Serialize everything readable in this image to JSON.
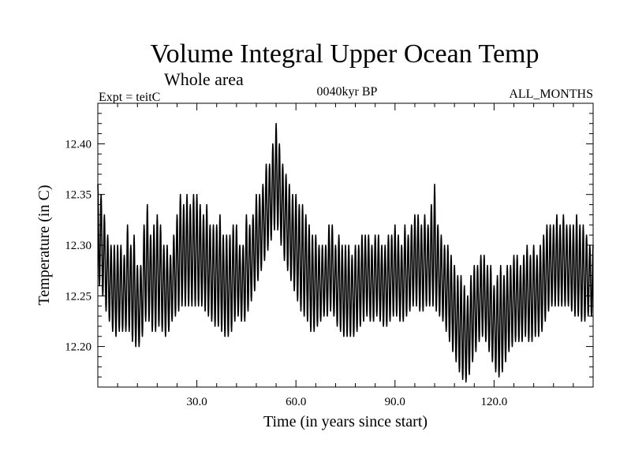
{
  "chart_data": {
    "type": "line",
    "title": "Volume Integral Upper Ocean Temp",
    "subtitle": "Whole area",
    "annotations": {
      "left": "Expt = teitC",
      "center": "0040kyr BP",
      "right": "ALL_MONTHS"
    },
    "xlabel": "Time (in years since start)",
    "ylabel": "Temperature (in C)",
    "xlim": [
      0,
      150
    ],
    "ylim": [
      12.16,
      12.44
    ],
    "xticks": [
      30,
      60,
      90,
      120
    ],
    "xtick_labels": [
      "30.0",
      "60.0",
      "90.0",
      "120.0"
    ],
    "yticks": [
      12.2,
      12.25,
      12.3,
      12.35,
      12.4
    ],
    "ytick_labels": [
      "12.20",
      "12.25",
      "12.30",
      "12.35",
      "12.40"
    ],
    "grid": false,
    "series": [
      {
        "name": "Temperature",
        "description": "Monthly series with strong seasonal oscillation (~1 cycle per year)",
        "peaks": [
          [
            0,
            12.36
          ],
          [
            1,
            12.35
          ],
          [
            2,
            12.33
          ],
          [
            3,
            12.31
          ],
          [
            4,
            12.3
          ],
          [
            5,
            12.3
          ],
          [
            6,
            12.3
          ],
          [
            7,
            12.3
          ],
          [
            8,
            12.29
          ],
          [
            9,
            12.32
          ],
          [
            10,
            12.3
          ],
          [
            11,
            12.31
          ],
          [
            12,
            12.28
          ],
          [
            13,
            12.28
          ],
          [
            14,
            12.32
          ],
          [
            15,
            12.34
          ],
          [
            16,
            12.31
          ],
          [
            17,
            12.32
          ],
          [
            18,
            12.33
          ],
          [
            19,
            12.32
          ],
          [
            20,
            12.3
          ],
          [
            21,
            12.3
          ],
          [
            22,
            12.29
          ],
          [
            23,
            12.31
          ],
          [
            24,
            12.33
          ],
          [
            25,
            12.35
          ],
          [
            26,
            12.34
          ],
          [
            27,
            12.35
          ],
          [
            28,
            12.34
          ],
          [
            29,
            12.35
          ],
          [
            30,
            12.35
          ],
          [
            31,
            12.34
          ],
          [
            32,
            12.33
          ],
          [
            33,
            12.34
          ],
          [
            34,
            12.32
          ],
          [
            35,
            12.32
          ],
          [
            36,
            12.32
          ],
          [
            37,
            12.33
          ],
          [
            38,
            12.31
          ],
          [
            39,
            12.31
          ],
          [
            40,
            12.31
          ],
          [
            41,
            12.32
          ],
          [
            42,
            12.32
          ],
          [
            43,
            12.3
          ],
          [
            44,
            12.3
          ],
          [
            45,
            12.33
          ],
          [
            46,
            12.32
          ],
          [
            47,
            12.33
          ],
          [
            48,
            12.35
          ],
          [
            49,
            12.35
          ],
          [
            50,
            12.36
          ],
          [
            51,
            12.38
          ],
          [
            52,
            12.38
          ],
          [
            53,
            12.4
          ],
          [
            54,
            12.42
          ],
          [
            55,
            12.4
          ],
          [
            56,
            12.38
          ],
          [
            57,
            12.37
          ],
          [
            58,
            12.36
          ],
          [
            59,
            12.35
          ],
          [
            60,
            12.35
          ],
          [
            61,
            12.34
          ],
          [
            62,
            12.34
          ],
          [
            63,
            12.33
          ],
          [
            64,
            12.32
          ],
          [
            65,
            12.31
          ],
          [
            66,
            12.31
          ],
          [
            67,
            12.3
          ],
          [
            68,
            12.3
          ],
          [
            69,
            12.3
          ],
          [
            70,
            12.32
          ],
          [
            71,
            12.32
          ],
          [
            72,
            12.3
          ],
          [
            73,
            12.31
          ],
          [
            74,
            12.3
          ],
          [
            75,
            12.3
          ],
          [
            76,
            12.3
          ],
          [
            77,
            12.29
          ],
          [
            78,
            12.3
          ],
          [
            79,
            12.3
          ],
          [
            80,
            12.31
          ],
          [
            81,
            12.31
          ],
          [
            82,
            12.31
          ],
          [
            83,
            12.3
          ],
          [
            84,
            12.31
          ],
          [
            85,
            12.31
          ],
          [
            86,
            12.3
          ],
          [
            87,
            12.3
          ],
          [
            88,
            12.31
          ],
          [
            89,
            12.31
          ],
          [
            90,
            12.32
          ],
          [
            91,
            12.31
          ],
          [
            92,
            12.3
          ],
          [
            93,
            12.32
          ],
          [
            94,
            12.31
          ],
          [
            95,
            12.32
          ],
          [
            96,
            12.33
          ],
          [
            97,
            12.33
          ],
          [
            98,
            12.32
          ],
          [
            99,
            12.33
          ],
          [
            100,
            12.32
          ],
          [
            101,
            12.34
          ],
          [
            102,
            12.36
          ],
          [
            103,
            12.32
          ],
          [
            104,
            12.31
          ],
          [
            105,
            12.3
          ],
          [
            106,
            12.3
          ],
          [
            107,
            12.29
          ],
          [
            108,
            12.28
          ],
          [
            109,
            12.27
          ],
          [
            110,
            12.27
          ],
          [
            111,
            12.26
          ],
          [
            112,
            12.25
          ],
          [
            113,
            12.27
          ],
          [
            114,
            12.28
          ],
          [
            115,
            12.28
          ],
          [
            116,
            12.29
          ],
          [
            117,
            12.29
          ],
          [
            118,
            12.28
          ],
          [
            119,
            12.28
          ],
          [
            120,
            12.26
          ],
          [
            121,
            12.27
          ],
          [
            122,
            12.28
          ],
          [
            123,
            12.27
          ],
          [
            124,
            12.28
          ],
          [
            125,
            12.28
          ],
          [
            126,
            12.29
          ],
          [
            127,
            12.29
          ],
          [
            128,
            12.28
          ],
          [
            129,
            12.29
          ],
          [
            130,
            12.3
          ],
          [
            131,
            12.29
          ],
          [
            132,
            12.3
          ],
          [
            133,
            12.29
          ],
          [
            134,
            12.3
          ],
          [
            135,
            12.31
          ],
          [
            136,
            12.32
          ],
          [
            137,
            12.32
          ],
          [
            138,
            12.32
          ],
          [
            139,
            12.33
          ],
          [
            140,
            12.32
          ],
          [
            141,
            12.33
          ],
          [
            142,
            12.32
          ],
          [
            143,
            12.32
          ],
          [
            144,
            12.32
          ],
          [
            145,
            12.33
          ],
          [
            146,
            12.32
          ],
          [
            147,
            12.32
          ],
          [
            148,
            12.31
          ],
          [
            149,
            12.3
          ],
          [
            150,
            12.3
          ]
        ],
        "troughs": [
          [
            0,
            12.26
          ],
          [
            1,
            12.26
          ],
          [
            2,
            12.24
          ],
          [
            3,
            12.23
          ],
          [
            4,
            12.22
          ],
          [
            5,
            12.21
          ],
          [
            6,
            12.21
          ],
          [
            7,
            12.22
          ],
          [
            8,
            12.21
          ],
          [
            9,
            12.22
          ],
          [
            10,
            12.21
          ],
          [
            11,
            12.2
          ],
          [
            12,
            12.2
          ],
          [
            13,
            12.2
          ],
          [
            14,
            12.22
          ],
          [
            15,
            12.23
          ],
          [
            16,
            12.22
          ],
          [
            17,
            12.21
          ],
          [
            18,
            12.22
          ],
          [
            19,
            12.22
          ],
          [
            20,
            12.21
          ],
          [
            21,
            12.21
          ],
          [
            22,
            12.22
          ],
          [
            23,
            12.23
          ],
          [
            24,
            12.23
          ],
          [
            25,
            12.24
          ],
          [
            26,
            12.24
          ],
          [
            27,
            12.24
          ],
          [
            28,
            12.24
          ],
          [
            29,
            12.24
          ],
          [
            30,
            12.24
          ],
          [
            31,
            12.24
          ],
          [
            32,
            12.24
          ],
          [
            33,
            12.23
          ],
          [
            34,
            12.23
          ],
          [
            35,
            12.22
          ],
          [
            36,
            12.22
          ],
          [
            37,
            12.22
          ],
          [
            38,
            12.21
          ],
          [
            39,
            12.21
          ],
          [
            40,
            12.21
          ],
          [
            41,
            12.22
          ],
          [
            42,
            12.23
          ],
          [
            43,
            12.23
          ],
          [
            44,
            12.22
          ],
          [
            45,
            12.23
          ],
          [
            46,
            12.24
          ],
          [
            47,
            12.25
          ],
          [
            48,
            12.26
          ],
          [
            49,
            12.27
          ],
          [
            50,
            12.28
          ],
          [
            51,
            12.29
          ],
          [
            52,
            12.3
          ],
          [
            53,
            12.31
          ],
          [
            54,
            12.32
          ],
          [
            55,
            12.31
          ],
          [
            56,
            12.29
          ],
          [
            57,
            12.28
          ],
          [
            58,
            12.27
          ],
          [
            59,
            12.26
          ],
          [
            60,
            12.25
          ],
          [
            61,
            12.24
          ],
          [
            62,
            12.23
          ],
          [
            63,
            12.23
          ],
          [
            64,
            12.22
          ],
          [
            65,
            12.21
          ],
          [
            66,
            12.22
          ],
          [
            67,
            12.22
          ],
          [
            68,
            12.23
          ],
          [
            69,
            12.23
          ],
          [
            70,
            12.23
          ],
          [
            71,
            12.24
          ],
          [
            72,
            12.22
          ],
          [
            73,
            12.22
          ],
          [
            74,
            12.21
          ],
          [
            75,
            12.21
          ],
          [
            76,
            12.21
          ],
          [
            77,
            12.21
          ],
          [
            78,
            12.21
          ],
          [
            79,
            12.22
          ],
          [
            80,
            12.22
          ],
          [
            81,
            12.23
          ],
          [
            82,
            12.23
          ],
          [
            83,
            12.22
          ],
          [
            84,
            12.23
          ],
          [
            85,
            12.23
          ],
          [
            86,
            12.22
          ],
          [
            87,
            12.22
          ],
          [
            88,
            12.22
          ],
          [
            89,
            12.23
          ],
          [
            90,
            12.23
          ],
          [
            91,
            12.23
          ],
          [
            92,
            12.22
          ],
          [
            93,
            12.23
          ],
          [
            94,
            12.23
          ],
          [
            95,
            12.24
          ],
          [
            96,
            12.24
          ],
          [
            97,
            12.24
          ],
          [
            98,
            12.23
          ],
          [
            99,
            12.24
          ],
          [
            100,
            12.24
          ],
          [
            101,
            12.24
          ],
          [
            102,
            12.24
          ],
          [
            103,
            12.23
          ],
          [
            104,
            12.23
          ],
          [
            105,
            12.22
          ],
          [
            106,
            12.21
          ],
          [
            107,
            12.2
          ],
          [
            108,
            12.19
          ],
          [
            109,
            12.18
          ],
          [
            110,
            12.17
          ],
          [
            111,
            12.165
          ],
          [
            112,
            12.165
          ],
          [
            113,
            12.18
          ],
          [
            114,
            12.19
          ],
          [
            115,
            12.2
          ],
          [
            116,
            12.21
          ],
          [
            117,
            12.21
          ],
          [
            118,
            12.2
          ],
          [
            119,
            12.19
          ],
          [
            120,
            12.18
          ],
          [
            121,
            12.17
          ],
          [
            122,
            12.17
          ],
          [
            123,
            12.18
          ],
          [
            124,
            12.19
          ],
          [
            125,
            12.2
          ],
          [
            126,
            12.2
          ],
          [
            127,
            12.21
          ],
          [
            128,
            12.2
          ],
          [
            129,
            12.21
          ],
          [
            130,
            12.21
          ],
          [
            131,
            12.2
          ],
          [
            132,
            12.21
          ],
          [
            133,
            12.21
          ],
          [
            134,
            12.21
          ],
          [
            135,
            12.22
          ],
          [
            136,
            12.23
          ],
          [
            137,
            12.24
          ],
          [
            138,
            12.24
          ],
          [
            139,
            12.24
          ],
          [
            140,
            12.24
          ],
          [
            141,
            12.24
          ],
          [
            142,
            12.24
          ],
          [
            143,
            12.24
          ],
          [
            144,
            12.23
          ],
          [
            145,
            12.23
          ],
          [
            146,
            12.23
          ],
          [
            147,
            12.22
          ],
          [
            148,
            12.23
          ],
          [
            149,
            12.23
          ],
          [
            150,
            12.23
          ]
        ]
      }
    ]
  }
}
